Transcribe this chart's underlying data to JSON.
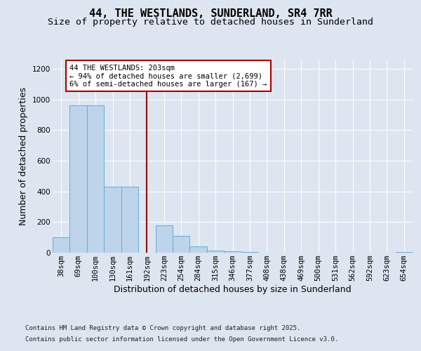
{
  "title_line1": "44, THE WESTLANDS, SUNDERLAND, SR4 7RR",
  "title_line2": "Size of property relative to detached houses in Sunderland",
  "xlabel": "Distribution of detached houses by size in Sunderland",
  "ylabel": "Number of detached properties",
  "categories": [
    "38sqm",
    "69sqm",
    "100sqm",
    "130sqm",
    "161sqm",
    "192sqm",
    "223sqm",
    "254sqm",
    "284sqm",
    "315sqm",
    "346sqm",
    "377sqm",
    "408sqm",
    "438sqm",
    "469sqm",
    "500sqm",
    "531sqm",
    "562sqm",
    "592sqm",
    "623sqm",
    "654sqm"
  ],
  "values": [
    100,
    960,
    960,
    430,
    430,
    0,
    180,
    110,
    40,
    15,
    8,
    5,
    2,
    1,
    0,
    0,
    0,
    0,
    0,
    0,
    5
  ],
  "bar_color": "#bdd4ea",
  "bar_edge_color": "#6aaad4",
  "red_line_index": 5,
  "annotation_text": "44 THE WESTLANDS: 203sqm\n← 94% of detached houses are smaller (2,699)\n6% of semi-detached houses are larger (167) →",
  "annotation_box_color": "#ffffff",
  "annotation_box_edge_color": "#aa0000",
  "ylim": [
    0,
    1260
  ],
  "yticks": [
    0,
    200,
    400,
    600,
    800,
    1000,
    1200
  ],
  "background_color": "#dde5f0",
  "plot_bg_color": "#dde5f0",
  "footer_line1": "Contains HM Land Registry data © Crown copyright and database right 2025.",
  "footer_line2": "Contains public sector information licensed under the Open Government Licence v3.0.",
  "title_fontsize": 11,
  "subtitle_fontsize": 9.5,
  "axis_label_fontsize": 9,
  "tick_fontsize": 7.5,
  "annotation_fontsize": 7.5,
  "footer_fontsize": 6.5
}
